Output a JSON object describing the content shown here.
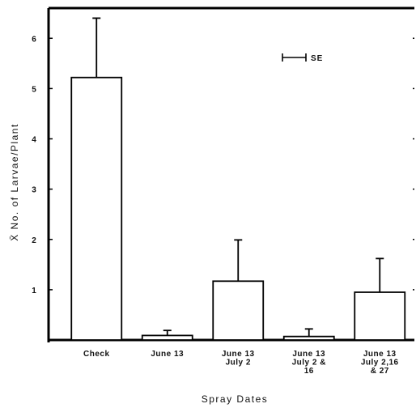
{
  "chart_data": {
    "type": "bar",
    "categories": [
      [
        "Check"
      ],
      [
        "June 13"
      ],
      [
        "June 13",
        "July 2"
      ],
      [
        "June 13",
        "July 2 &",
        "16"
      ],
      [
        "June 13",
        "July 2,16",
        "& 27"
      ]
    ],
    "values": [
      5.22,
      0.09,
      1.17,
      0.07,
      0.95
    ],
    "errors": [
      1.18,
      0.1,
      0.82,
      0.15,
      0.67
    ],
    "xlabel": "Spray Dates",
    "ylabel": "X̄ No. of Larvae/Plant",
    "ylim": [
      0,
      6.6
    ],
    "yticks": [
      1,
      2,
      3,
      4,
      5,
      6
    ],
    "grid": false,
    "legend": {
      "label": "SE",
      "placement": "top-right"
    }
  }
}
